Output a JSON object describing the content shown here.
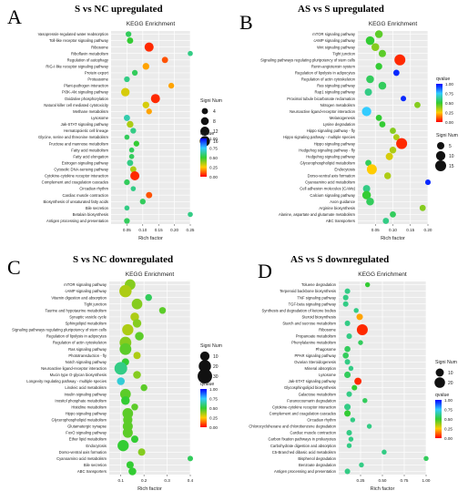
{
  "chart_data": [
    {
      "type": "scatter",
      "letter": "A",
      "title": "S vs NC upregulated",
      "subtitle": "KEGG Enrichment",
      "xlabel": "Rich factor",
      "xlim": [
        0.0,
        0.25
      ],
      "xticks": [
        "0.05",
        "0.10",
        "0.15",
        "0.20",
        "0.25"
      ],
      "legend_size_title": "Signi Num",
      "legend_sizes": [
        "4",
        "8",
        "12",
        "16"
      ],
      "legend_color_title": "qvalue",
      "legend_color_ticks": [
        "1.00",
        "0.75",
        "0.50",
        "0.25",
        "0.00"
      ],
      "points": [
        {
          "term": "Vasopressin-regulated water reabsorption",
          "x": 0.055,
          "size": 3,
          "q": 0.55
        },
        {
          "term": "Toll-like receptor signaling pathway",
          "x": 0.06,
          "size": 4,
          "q": 0.5
        },
        {
          "term": "Ribosome",
          "x": 0.12,
          "size": 12,
          "q": 0.05
        },
        {
          "term": "Riboflavin metabolism",
          "x": 0.25,
          "size": 2,
          "q": 0.6
        },
        {
          "term": "Regulation of autophagy",
          "x": 0.17,
          "size": 4,
          "q": 0.1
        },
        {
          "term": "RIG-I-like receptor signaling pathway",
          "x": 0.11,
          "size": 5,
          "q": 0.2
        },
        {
          "term": "Protein export",
          "x": 0.075,
          "size": 3,
          "q": 0.55
        },
        {
          "term": "Proteasome",
          "x": 0.05,
          "size": 3,
          "q": 0.6
        },
        {
          "term": "Plant-pathogen interaction",
          "x": 0.19,
          "size": 3,
          "q": 0.2
        },
        {
          "term": "PI3K-Akt signaling pathway",
          "x": 0.045,
          "size": 10,
          "q": 0.3
        },
        {
          "term": "Oxidative phosphorylation",
          "x": 0.14,
          "size": 12,
          "q": 0.05
        },
        {
          "term": "Natural killer cell mediated cytotoxicity",
          "x": 0.11,
          "size": 5,
          "q": 0.3
        },
        {
          "term": "Methane metabolism",
          "x": 0.12,
          "size": 3,
          "q": 0.2
        },
        {
          "term": "Lysosome",
          "x": 0.05,
          "size": 4,
          "q": 0.65
        },
        {
          "term": "Jak-STAT signaling pathway",
          "x": 0.06,
          "size": 5,
          "q": 0.35
        },
        {
          "term": "Hematopoietic cell lineage",
          "x": 0.07,
          "size": 3,
          "q": 0.6
        },
        {
          "term": "Glycine, serine and threonine metabolism",
          "x": 0.05,
          "size": 2,
          "q": 0.55
        },
        {
          "term": "Fructose and mannose metabolism",
          "x": 0.08,
          "size": 3,
          "q": 0.5
        },
        {
          "term": "Fatty acid metabolism",
          "x": 0.065,
          "size": 2,
          "q": 0.55
        },
        {
          "term": "Fatty acid elongation",
          "x": 0.065,
          "size": 2,
          "q": 0.55
        },
        {
          "term": "Estrogen signaling pathway",
          "x": 0.06,
          "size": 4,
          "q": 0.6
        },
        {
          "term": "Cytosolic DNA-sensing pathway",
          "x": 0.07,
          "size": 4,
          "q": 0.35
        },
        {
          "term": "Cytokine-cytokine receptor interaction",
          "x": 0.075,
          "size": 12,
          "q": 0.05
        },
        {
          "term": "Complement and coagulation cascades",
          "x": 0.05,
          "size": 3,
          "q": 0.55
        },
        {
          "term": "Circadian rhythm",
          "x": 0.07,
          "size": 2,
          "q": 0.6
        },
        {
          "term": "Cardiac muscle contraction",
          "x": 0.12,
          "size": 4,
          "q": 0.1
        },
        {
          "term": "Biosynthesis of unsaturated fatty acids",
          "x": 0.1,
          "size": 3,
          "q": 0.55
        },
        {
          "term": "Bile secretion",
          "x": 0.05,
          "size": 2,
          "q": 0.6
        },
        {
          "term": "Betalain biosynthesis",
          "x": 0.25,
          "size": 2,
          "q": 0.6
        },
        {
          "term": "Antigen processing and presentation",
          "x": 0.05,
          "size": 3,
          "q": 0.55
        }
      ]
    },
    {
      "type": "scatter",
      "letter": "B",
      "title": "AS vs S upregulated",
      "subtitle": "KEGG Enrichment",
      "xlabel": "Rich factor",
      "xlim": [
        0.0,
        0.2
      ],
      "xticks": [
        "0.05",
        "0.10",
        "0.15",
        "0.20"
      ],
      "legend_color_title": "qvalue",
      "legend_color_ticks": [
        "1.00",
        "0.75",
        "0.50",
        "0.25",
        "0.00"
      ],
      "legend_size_title": "Signi Num",
      "legend_sizes": [
        "5",
        "10",
        "15"
      ],
      "points": [
        {
          "term": "mTOR signaling pathway",
          "x": 0.06,
          "size": 6,
          "q": 0.45
        },
        {
          "term": "cAMP signaling pathway",
          "x": 0.035,
          "size": 8,
          "q": 0.5
        },
        {
          "term": "Wnt signaling pathway",
          "x": 0.05,
          "size": 6,
          "q": 0.4
        },
        {
          "term": "Tight junction",
          "x": 0.07,
          "size": 5,
          "q": 0.45
        },
        {
          "term": "Signaling pathways regulating pluripotency of stem cells",
          "x": 0.12,
          "size": 15,
          "q": 0.05
        },
        {
          "term": "Renin-angiotensin system",
          "x": 0.06,
          "size": 4,
          "q": 0.5
        },
        {
          "term": "Regulation of lipolysis in adipocytes",
          "x": 0.11,
          "size": 3,
          "q": 0.95
        },
        {
          "term": "Regulation of actin cytoskeleton",
          "x": 0.035,
          "size": 6,
          "q": 0.55
        },
        {
          "term": "Ras signaling pathway",
          "x": 0.07,
          "size": 6,
          "q": 0.55
        },
        {
          "term": "Rap1 signaling pathway",
          "x": 0.03,
          "size": 5,
          "q": 0.6
        },
        {
          "term": "Proximal tubule bicarbonate reclamation",
          "x": 0.13,
          "size": 2,
          "q": 0.95
        },
        {
          "term": "Nitrogen metabolism",
          "x": 0.17,
          "size": 3,
          "q": 0.4
        },
        {
          "term": "Neuroactive ligand-receptor interaction",
          "x": 0.025,
          "size": 10,
          "q": 0.75
        },
        {
          "term": "Melanogenesis",
          "x": 0.06,
          "size": 3,
          "q": 0.5
        },
        {
          "term": "Lysine degradation",
          "x": 0.07,
          "size": 3,
          "q": 0.5
        },
        {
          "term": "Hippo signaling pathway - fly",
          "x": 0.1,
          "size": 3,
          "q": 0.4
        },
        {
          "term": "Hippo signaling pathway - multiple species",
          "x": 0.11,
          "size": 3,
          "q": 0.35
        },
        {
          "term": "Hippo signaling pathway",
          "x": 0.125,
          "size": 15,
          "q": 0.05
        },
        {
          "term": "Hedgehog signaling pathway - fly",
          "x": 0.1,
          "size": 4,
          "q": 0.35
        },
        {
          "term": "Hedgehog signaling pathway",
          "x": 0.09,
          "size": 5,
          "q": 0.3
        },
        {
          "term": "Glycerophospholipid metabolism",
          "x": 0.03,
          "size": 3,
          "q": 0.55
        },
        {
          "term": "Endocytosis",
          "x": 0.04,
          "size": 12,
          "q": 0.25
        },
        {
          "term": "Dorso-ventral axis formation",
          "x": 0.085,
          "size": 4,
          "q": 0.35
        },
        {
          "term": "Cyanoamino acid metabolism",
          "x": 0.2,
          "size": 2,
          "q": 0.95
        },
        {
          "term": "Cell adhesion molecules (CAMs)",
          "x": 0.025,
          "size": 5,
          "q": 0.6
        },
        {
          "term": "Calcium signaling pathway",
          "x": 0.025,
          "size": 8,
          "q": 0.5
        },
        {
          "term": "Axon guidance",
          "x": 0.035,
          "size": 6,
          "q": 0.55
        },
        {
          "term": "Arginine biosynthesis",
          "x": 0.185,
          "size": 3,
          "q": 0.4
        },
        {
          "term": "Alanine, aspartate and glutamate metabolism",
          "x": 0.1,
          "size": 3,
          "q": 0.55
        },
        {
          "term": "ABC transporters",
          "x": 0.08,
          "size": 3,
          "q": 0.6
        }
      ]
    },
    {
      "type": "scatter",
      "letter": "C",
      "title": "S vs NC downregulated",
      "subtitle": "KEGG Enrichment",
      "xlabel": "Rich factor",
      "xlim": [
        0.05,
        0.4
      ],
      "xticks": [
        "0.1",
        "0.2",
        "0.3",
        "0.4"
      ],
      "legend_size_title": "Signi Num",
      "legend_sizes": [
        "10",
        "20",
        "30"
      ],
      "legend_color_title": "qvalue",
      "legend_color_ticks": [
        "1.00",
        "0.75",
        "0.50",
        "0.25",
        "0.00"
      ],
      "points": [
        {
          "term": "mTOR signaling pathway",
          "x": 0.14,
          "size": 14,
          "q": 0.4
        },
        {
          "term": "cAMP signaling pathway",
          "x": 0.12,
          "size": 20,
          "q": 0.35
        },
        {
          "term": "Vitamin digestion and absorption",
          "x": 0.22,
          "size": 4,
          "q": 0.55
        },
        {
          "term": "Tight junction",
          "x": 0.17,
          "size": 14,
          "q": 0.4
        },
        {
          "term": "Taurine and hypotaurine metabolism",
          "x": 0.28,
          "size": 4,
          "q": 0.45
        },
        {
          "term": "Synaptic vesicle cycle",
          "x": 0.16,
          "size": 8,
          "q": 0.35
        },
        {
          "term": "Sphingolipid metabolism",
          "x": 0.17,
          "size": 8,
          "q": 0.4
        },
        {
          "term": "Signaling pathways regulating pluripotency of stem cells",
          "x": 0.13,
          "size": 16,
          "q": 0.35
        },
        {
          "term": "Regulation of lipolysis in adipocytes",
          "x": 0.18,
          "size": 8,
          "q": 0.45
        },
        {
          "term": "Regulation of actin cytoskeleton",
          "x": 0.12,
          "size": 18,
          "q": 0.4
        },
        {
          "term": "Ras signaling pathway",
          "x": 0.12,
          "size": 18,
          "q": 0.45
        },
        {
          "term": "Phototransduction - fly",
          "x": 0.17,
          "size": 5,
          "q": 0.35
        },
        {
          "term": "Notch signaling pathway",
          "x": 0.12,
          "size": 5,
          "q": 0.5
        },
        {
          "term": "Neuroactive ligand-receptor interaction",
          "x": 0.1,
          "size": 22,
          "q": 0.6
        },
        {
          "term": "Mucin type O-glycan biosynthesis",
          "x": 0.17,
          "size": 6,
          "q": 0.4
        },
        {
          "term": "Longevity regulating pathway - multiple species",
          "x": 0.1,
          "size": 6,
          "q": 0.7
        },
        {
          "term": "Linoleic acid metabolism",
          "x": 0.2,
          "size": 4,
          "q": 0.45
        },
        {
          "term": "Insulin signaling pathway",
          "x": 0.12,
          "size": 14,
          "q": 0.45
        },
        {
          "term": "Inositol phosphate metabolism",
          "x": 0.12,
          "size": 8,
          "q": 0.5
        },
        {
          "term": "Histidine metabolism",
          "x": 0.16,
          "size": 4,
          "q": 0.45
        },
        {
          "term": "Hippo signaling pathway",
          "x": 0.13,
          "size": 14,
          "q": 0.45
        },
        {
          "term": "Glycerophospholipid metabolism",
          "x": 0.13,
          "size": 10,
          "q": 0.45
        },
        {
          "term": "Glutamatergic synapse",
          "x": 0.13,
          "size": 12,
          "q": 0.45
        },
        {
          "term": "FoxO signaling pathway",
          "x": 0.13,
          "size": 12,
          "q": 0.45
        },
        {
          "term": "Ether lipid metabolism",
          "x": 0.16,
          "size": 5,
          "q": 0.5
        },
        {
          "term": "Endocytosis",
          "x": 0.11,
          "size": 16,
          "q": 0.5
        },
        {
          "term": "Dorso-ventral axis formation",
          "x": 0.19,
          "size": 5,
          "q": 0.4
        },
        {
          "term": "Cyanoamino acid metabolism",
          "x": 0.4,
          "size": 2,
          "q": 0.55
        },
        {
          "term": "Bile secretion",
          "x": 0.14,
          "size": 5,
          "q": 0.5
        },
        {
          "term": "ABC transporters",
          "x": 0.15,
          "size": 6,
          "q": 0.5
        }
      ]
    },
    {
      "type": "scatter",
      "letter": "D",
      "title": "AS vs S downregulated",
      "subtitle": "KEGG Enrichment",
      "xlabel": "Rich factor",
      "xlim": [
        0.0,
        1.0
      ],
      "xticks": [
        "0.25",
        "0.50",
        "0.75",
        "1.00"
      ],
      "legend_size_title": "Signi Num",
      "legend_sizes": [
        "10",
        "20"
      ],
      "legend_color_title": "qvalue",
      "legend_color_ticks": [
        "1.00",
        "0.75",
        "0.50",
        "0.25",
        "0.00"
      ],
      "points": [
        {
          "term": "Toluene degradation",
          "x": 0.33,
          "size": 2,
          "q": 0.5
        },
        {
          "term": "Terpenoid backbone biosynthesis",
          "x": 0.1,
          "size": 3,
          "q": 0.6
        },
        {
          "term": "TNF signaling pathway",
          "x": 0.08,
          "size": 3,
          "q": 0.6
        },
        {
          "term": "TGF-beta signaling pathway",
          "x": 0.08,
          "size": 3,
          "q": 0.6
        },
        {
          "term": "Synthesis and degradation of ketone bodies",
          "x": 0.2,
          "size": 2,
          "q": 0.6
        },
        {
          "term": "Steroid biosynthesis",
          "x": 0.24,
          "size": 5,
          "q": 0.2
        },
        {
          "term": "Starch and sucrose metabolism",
          "x": 0.1,
          "size": 3,
          "q": 0.6
        },
        {
          "term": "Ribosome",
          "x": 0.27,
          "size": 22,
          "q": 0.05
        },
        {
          "term": "Propanoate metabolism",
          "x": 0.12,
          "size": 3,
          "q": 0.6
        },
        {
          "term": "Phenylalanine metabolism",
          "x": 0.25,
          "size": 2,
          "q": 0.55
        },
        {
          "term": "Phagosome",
          "x": 0.1,
          "size": 4,
          "q": 0.55
        },
        {
          "term": "PPAR signaling pathway",
          "x": 0.08,
          "size": 4,
          "q": 0.55
        },
        {
          "term": "Ovarian Steroidogenesis",
          "x": 0.1,
          "size": 3,
          "q": 0.6
        },
        {
          "term": "Mineral absorption",
          "x": 0.14,
          "size": 2,
          "q": 0.6
        },
        {
          "term": "Lysosome",
          "x": 0.1,
          "size": 5,
          "q": 0.55
        },
        {
          "term": "Jak-STAT signaling pathway",
          "x": 0.22,
          "size": 7,
          "q": 0.05
        },
        {
          "term": "Glycosphingolipid biosynthesis",
          "x": 0.18,
          "size": 3,
          "q": 0.5
        },
        {
          "term": "Galactose metabolism",
          "x": 0.12,
          "size": 3,
          "q": 0.6
        },
        {
          "term": "Furanocoumarin degradation",
          "x": 0.3,
          "size": 2,
          "q": 0.55
        },
        {
          "term": "Cytokine-cytokine receptor interaction",
          "x": 0.1,
          "size": 5,
          "q": 0.6
        },
        {
          "term": "Complement and coagulation cascades",
          "x": 0.1,
          "size": 5,
          "q": 0.5
        },
        {
          "term": "Circadian rhythm",
          "x": 0.16,
          "size": 2,
          "q": 0.6
        },
        {
          "term": "Chlorocyclohexane and chlorobenzene degradation",
          "x": 0.35,
          "size": 2,
          "q": 0.6
        },
        {
          "term": "Cardiac muscle contraction",
          "x": 0.12,
          "size": 3,
          "q": 0.6
        },
        {
          "term": "Carbon fixation pathways in prokaryotes",
          "x": 0.14,
          "size": 2,
          "q": 0.6
        },
        {
          "term": "Carbohydrate digestion and absorption",
          "x": 0.12,
          "size": 2,
          "q": 0.6
        },
        {
          "term": "C5-Branched dibasic acid metabolism",
          "x": 0.52,
          "size": 2,
          "q": 0.6
        },
        {
          "term": "Bisphenol degradation",
          "x": 1.0,
          "size": 2,
          "q": 0.55
        },
        {
          "term": "Benzoate degradation",
          "x": 0.26,
          "size": 2,
          "q": 0.6
        },
        {
          "term": "Antigen processing and presentation",
          "x": 0.1,
          "size": 3,
          "q": 0.6
        }
      ]
    }
  ]
}
